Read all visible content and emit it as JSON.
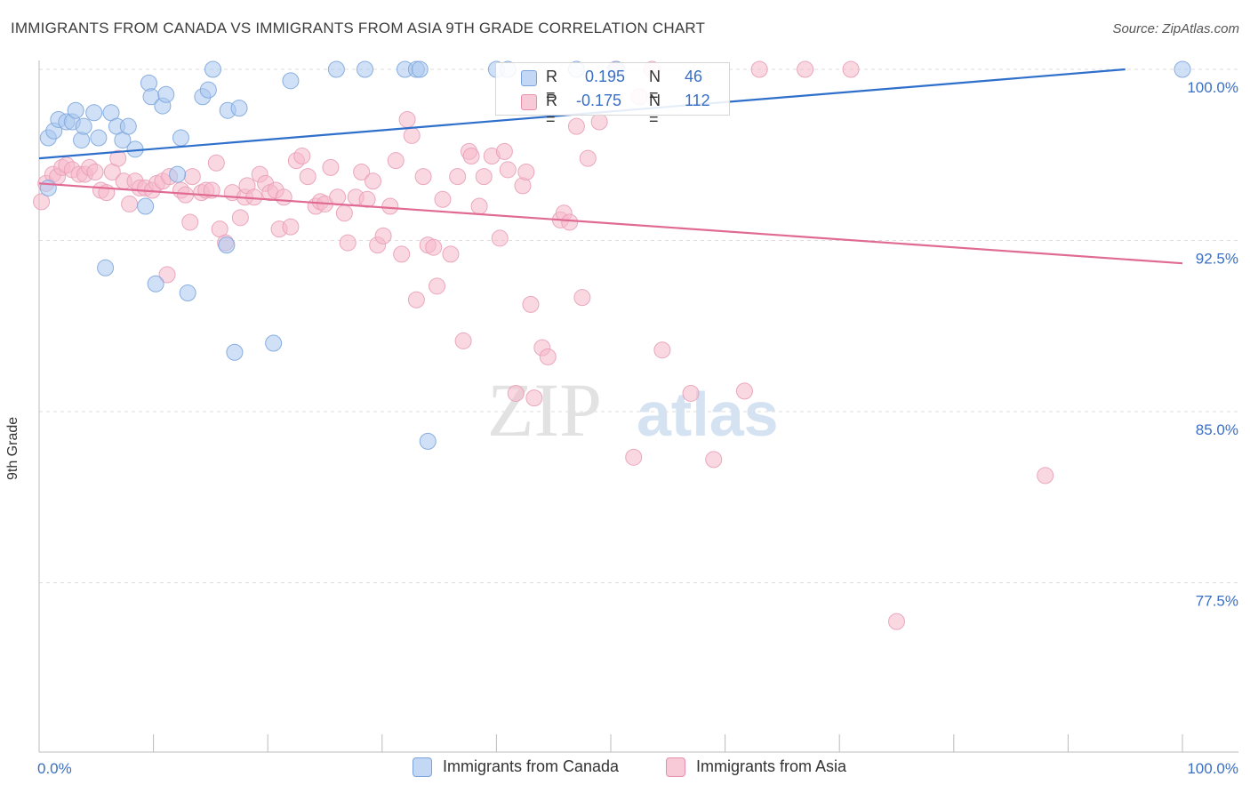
{
  "header": {
    "title": "IMMIGRANTS FROM CANADA VS IMMIGRANTS FROM ASIA 9TH GRADE CORRELATION CHART",
    "source": "Source: ZipAtlas.com"
  },
  "watermark": {
    "zip": "ZIP",
    "atlas": "atlas"
  },
  "colors": {
    "canada": "#a9c8f0",
    "canada_line": "#2f6fcc",
    "asia": "#f5b8cb",
    "asia_line": "#e06a93",
    "tick_label": "#3a6fc4"
  },
  "legend": {
    "rows": [
      {
        "r_label": "R =",
        "r_value": "0.195",
        "n_label": "N =",
        "n_value": "46"
      },
      {
        "r_label": "R =",
        "r_value": "-0.175",
        "n_label": "N =",
        "n_value": "112"
      }
    ]
  },
  "bottom_legend": {
    "canada": "Immigrants from Canada",
    "asia": "Immigrants from Asia"
  },
  "chart_data": {
    "type": "scatter",
    "title": "IMMIGRANTS FROM CANADA VS IMMIGRANTS FROM ASIA 9TH GRADE CORRELATION CHART",
    "xlabel": "",
    "ylabel": "9th Grade",
    "xlim": [
      0,
      100
    ],
    "ylim": [
      70,
      100
    ],
    "x_tick_labels": [
      "0.0%",
      "100.0%"
    ],
    "y_tick_values": [
      100,
      92.5,
      85,
      77.5
    ],
    "y_tick_labels": [
      "100.0%",
      "92.5%",
      "85.0%",
      "77.5%"
    ],
    "grid": true,
    "series": [
      {
        "name": "Immigrants from Canada",
        "r": 0.195,
        "n": 46,
        "trend": {
          "x": [
            0,
            95
          ],
          "y": [
            96.1,
            100
          ]
        },
        "points": [
          [
            0.8,
            94.8
          ],
          [
            0.8,
            97.0
          ],
          [
            1.3,
            97.3
          ],
          [
            1.7,
            97.8
          ],
          [
            2.4,
            97.7
          ],
          [
            2.9,
            97.7
          ],
          [
            3.2,
            98.2
          ],
          [
            3.7,
            96.9
          ],
          [
            3.9,
            97.5
          ],
          [
            4.8,
            98.1
          ],
          [
            5.2,
            97.0
          ],
          [
            6.3,
            98.1
          ],
          [
            6.8,
            97.5
          ],
          [
            7.3,
            96.9
          ],
          [
            7.8,
            97.5
          ],
          [
            8.4,
            96.5
          ],
          [
            9.3,
            94.0
          ],
          [
            9.6,
            99.4
          ],
          [
            9.8,
            98.8
          ],
          [
            10.8,
            98.4
          ],
          [
            11.1,
            98.9
          ],
          [
            12.1,
            95.4
          ],
          [
            12.4,
            97.0
          ],
          [
            14.3,
            98.8
          ],
          [
            14.8,
            99.1
          ],
          [
            15.2,
            100
          ],
          [
            16.4,
            92.3
          ],
          [
            16.5,
            98.2
          ],
          [
            17.5,
            98.3
          ],
          [
            20.5,
            88.0
          ],
          [
            22.0,
            99.5
          ],
          [
            26.0,
            100
          ],
          [
            28.5,
            100
          ],
          [
            32.0,
            100
          ],
          [
            33.0,
            100
          ],
          [
            33.3,
            100
          ],
          [
            5.8,
            91.3
          ],
          [
            10.2,
            90.6
          ],
          [
            13.0,
            90.2
          ],
          [
            17.1,
            87.6
          ],
          [
            34.0,
            83.7
          ],
          [
            40.0,
            100
          ],
          [
            41.0,
            100
          ],
          [
            47.0,
            100
          ],
          [
            50.5,
            100
          ],
          [
            100,
            100
          ]
        ]
      },
      {
        "name": "Immigrants from Asia",
        "r": -0.175,
        "n": 112,
        "trend": {
          "x": [
            0,
            100
          ],
          "y": [
            95.0,
            91.5
          ]
        },
        "points": [
          [
            0.2,
            94.2
          ],
          [
            0.6,
            95.0
          ],
          [
            1.2,
            95.4
          ],
          [
            1.6,
            95.3
          ],
          [
            2.0,
            95.7
          ],
          [
            2.4,
            95.8
          ],
          [
            2.9,
            95.6
          ],
          [
            3.5,
            95.4
          ],
          [
            4.0,
            95.4
          ],
          [
            4.4,
            95.7
          ],
          [
            4.9,
            95.5
          ],
          [
            5.4,
            94.7
          ],
          [
            5.9,
            94.6
          ],
          [
            6.4,
            95.5
          ],
          [
            6.9,
            96.1
          ],
          [
            7.4,
            95.1
          ],
          [
            7.9,
            94.1
          ],
          [
            8.4,
            95.1
          ],
          [
            8.8,
            94.8
          ],
          [
            9.3,
            94.8
          ],
          [
            9.9,
            94.7
          ],
          [
            10.3,
            95.0
          ],
          [
            10.8,
            95.1
          ],
          [
            11.2,
            91.0
          ],
          [
            11.4,
            95.3
          ],
          [
            12.4,
            94.7
          ],
          [
            12.8,
            94.5
          ],
          [
            13.2,
            93.3
          ],
          [
            13.4,
            95.3
          ],
          [
            14.2,
            94.6
          ],
          [
            14.6,
            94.7
          ],
          [
            15.1,
            94.7
          ],
          [
            15.5,
            95.9
          ],
          [
            15.8,
            93.0
          ],
          [
            16.3,
            92.4
          ],
          [
            16.9,
            94.6
          ],
          [
            17.6,
            93.5
          ],
          [
            18.0,
            94.4
          ],
          [
            18.2,
            94.9
          ],
          [
            18.8,
            94.4
          ],
          [
            19.3,
            95.4
          ],
          [
            19.8,
            95.0
          ],
          [
            20.2,
            94.6
          ],
          [
            20.7,
            94.7
          ],
          [
            21.0,
            93.0
          ],
          [
            21.4,
            94.4
          ],
          [
            22.0,
            93.1
          ],
          [
            22.5,
            96.0
          ],
          [
            23.0,
            96.2
          ],
          [
            23.5,
            95.3
          ],
          [
            24.2,
            94.0
          ],
          [
            24.6,
            94.2
          ],
          [
            25.0,
            94.1
          ],
          [
            25.5,
            95.7
          ],
          [
            26.1,
            94.4
          ],
          [
            26.7,
            93.7
          ],
          [
            27.0,
            92.4
          ],
          [
            27.7,
            94.4
          ],
          [
            28.2,
            95.5
          ],
          [
            28.7,
            94.3
          ],
          [
            29.2,
            95.1
          ],
          [
            29.6,
            92.3
          ],
          [
            30.1,
            92.7
          ],
          [
            30.7,
            94.0
          ],
          [
            31.2,
            96.0
          ],
          [
            31.7,
            91.9
          ],
          [
            32.2,
            97.8
          ],
          [
            32.6,
            97.1
          ],
          [
            33.0,
            89.9
          ],
          [
            33.6,
            95.3
          ],
          [
            34.0,
            92.3
          ],
          [
            34.5,
            92.2
          ],
          [
            34.8,
            90.5
          ],
          [
            35.3,
            94.3
          ],
          [
            36.0,
            91.9
          ],
          [
            36.6,
            95.3
          ],
          [
            37.1,
            88.1
          ],
          [
            37.6,
            96.4
          ],
          [
            37.8,
            96.2
          ],
          [
            38.5,
            94.0
          ],
          [
            38.9,
            95.3
          ],
          [
            39.6,
            96.2
          ],
          [
            40.3,
            92.6
          ],
          [
            40.7,
            96.4
          ],
          [
            41.0,
            95.6
          ],
          [
            41.7,
            85.8
          ],
          [
            42.3,
            94.9
          ],
          [
            42.6,
            95.5
          ],
          [
            43.0,
            89.7
          ],
          [
            43.3,
            85.6
          ],
          [
            44.0,
            87.8
          ],
          [
            44.5,
            87.4
          ],
          [
            45.6,
            93.4
          ],
          [
            45.9,
            93.7
          ],
          [
            46.4,
            93.3
          ],
          [
            47.0,
            97.5
          ],
          [
            47.5,
            90.0
          ],
          [
            48.0,
            96.1
          ],
          [
            49.0,
            97.7
          ],
          [
            50.4,
            100
          ],
          [
            52.0,
            83.0
          ],
          [
            52.5,
            98.8
          ],
          [
            53.6,
            100
          ],
          [
            54.5,
            87.7
          ],
          [
            57.0,
            85.8
          ],
          [
            59.0,
            82.9
          ],
          [
            61.7,
            85.9
          ],
          [
            63.0,
            100
          ],
          [
            67.0,
            100
          ],
          [
            71.0,
            100
          ],
          [
            75.0,
            75.8
          ],
          [
            88.0,
            82.2
          ]
        ]
      }
    ]
  }
}
